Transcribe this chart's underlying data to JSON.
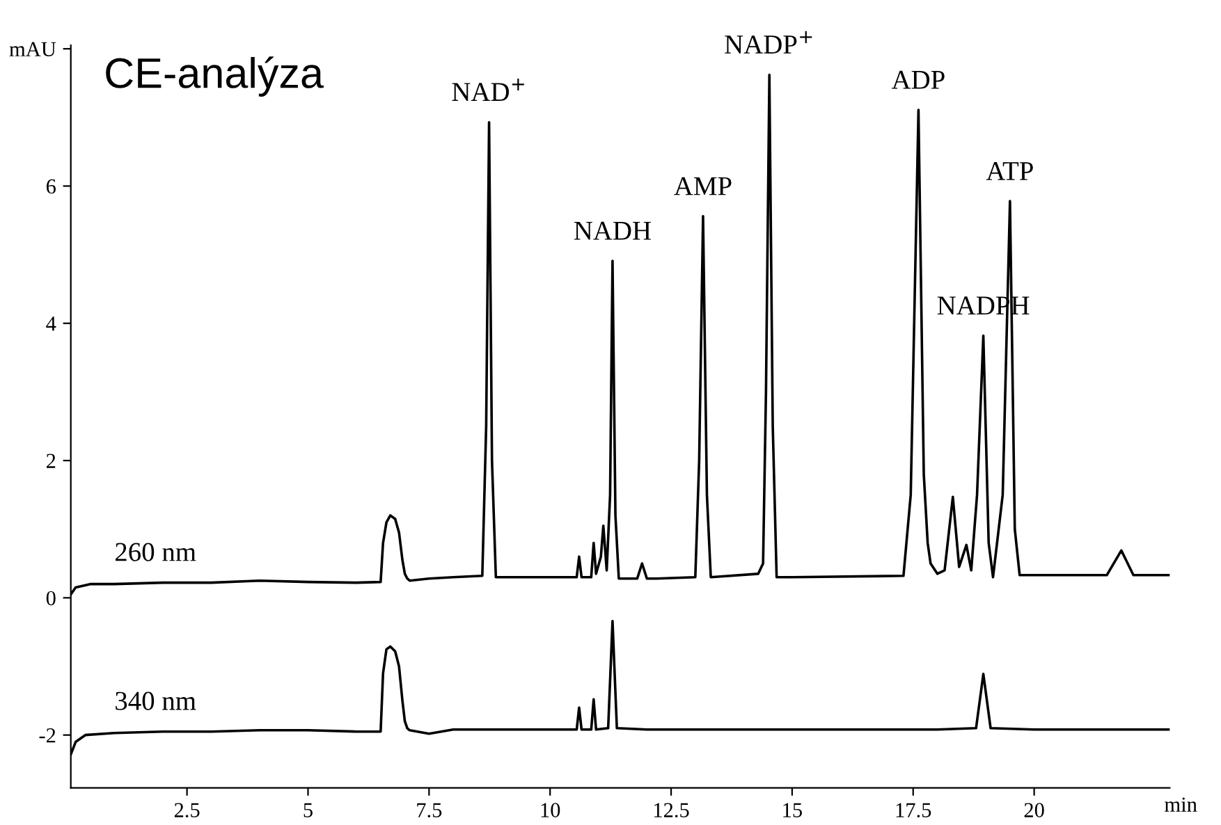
{
  "chart_data": {
    "type": "line",
    "title": "CE-analýza",
    "xlabel": "min",
    "xlim": [
      0.1,
      22.8
    ],
    "ylim": [
      -2.77,
      8.05
    ],
    "xticks": [
      2.5,
      5,
      7.5,
      10,
      12.5,
      15,
      17.5,
      20
    ],
    "yticks": [
      -2,
      0,
      2,
      4,
      6,
      {
        "value": 8,
        "label": "mAU"
      }
    ],
    "grid": false,
    "marker": "none",
    "line_style": "solid",
    "series": [
      {
        "name": "260 nm",
        "color": "#000000",
        "x": [
          0.1,
          0.2,
          0.5,
          1,
          2,
          3,
          4,
          5,
          6,
          6.5,
          6.55,
          6.62,
          6.7,
          6.8,
          6.88,
          6.95,
          7.0,
          7.05,
          7.1,
          7.5,
          8,
          8.6,
          8.68,
          8.74,
          8.8,
          8.88,
          9.5,
          10,
          10.55,
          10.6,
          10.65,
          10.85,
          10.9,
          10.95,
          11.05,
          11.1,
          11.17,
          11.24,
          11.29,
          11.35,
          11.42,
          11.8,
          11.9,
          12,
          12.2,
          13.0,
          13.08,
          13.16,
          13.24,
          13.32,
          14.3,
          14.4,
          14.46,
          14.53,
          14.6,
          14.68,
          15,
          17.3,
          17.45,
          17.61,
          17.72,
          17.8,
          17.86,
          18.0,
          18.15,
          18.32,
          18.45,
          18.6,
          18.7,
          18.82,
          18.95,
          19.06,
          19.15,
          19.35,
          19.5,
          19.6,
          19.7,
          21.5,
          21.8,
          22.05,
          22.8
        ],
        "values": [
          0.05,
          0.15,
          0.2,
          0.2,
          0.22,
          0.22,
          0.25,
          0.23,
          0.22,
          0.23,
          0.8,
          1.1,
          1.2,
          1.15,
          0.95,
          0.55,
          0.35,
          0.28,
          0.25,
          0.28,
          0.3,
          0.32,
          2.5,
          6.93,
          2.0,
          0.3,
          0.3,
          0.3,
          0.3,
          0.6,
          0.3,
          0.3,
          0.8,
          0.35,
          0.6,
          1.05,
          0.4,
          1.5,
          4.91,
          1.2,
          0.28,
          0.28,
          0.5,
          0.28,
          0.28,
          0.3,
          2.0,
          5.56,
          1.5,
          0.3,
          0.35,
          0.5,
          3.0,
          7.62,
          2.5,
          0.3,
          0.3,
          0.32,
          1.5,
          7.11,
          1.8,
          0.8,
          0.5,
          0.35,
          0.4,
          1.47,
          0.45,
          0.77,
          0.4,
          1.5,
          3.82,
          0.8,
          0.3,
          1.5,
          5.78,
          1.0,
          0.33,
          0.33,
          0.69,
          0.33,
          0.33
        ]
      },
      {
        "name": "340 nm",
        "color": "#000000",
        "x": [
          0.1,
          0.2,
          0.4,
          1,
          2,
          3,
          4,
          5,
          6,
          6.5,
          6.55,
          6.62,
          6.7,
          6.8,
          6.88,
          6.95,
          7.0,
          7.05,
          7.1,
          7.5,
          8,
          10,
          10.55,
          10.6,
          10.65,
          10.85,
          10.9,
          10.95,
          11.2,
          11.29,
          11.38,
          12,
          15,
          18,
          18.8,
          18.95,
          19.1,
          20,
          22.8
        ],
        "values": [
          -2.28,
          -2.1,
          -2.0,
          -1.97,
          -1.95,
          -1.95,
          -1.93,
          -1.93,
          -1.95,
          -1.95,
          -1.1,
          -0.75,
          -0.71,
          -0.78,
          -1.0,
          -1.5,
          -1.8,
          -1.9,
          -1.93,
          -1.98,
          -1.92,
          -1.92,
          -1.92,
          -1.6,
          -1.92,
          -1.92,
          -1.48,
          -1.92,
          -1.9,
          -0.34,
          -1.9,
          -1.92,
          -1.92,
          -1.92,
          -1.9,
          -1.11,
          -1.9,
          -1.92,
          -1.92
        ]
      }
    ],
    "annotations": [
      {
        "text": "NAD$^{+}$",
        "x": 8.74,
        "y": 6.93
      },
      {
        "text": "NADH",
        "x": 11.29,
        "y": 4.91
      },
      {
        "text": "AMP",
        "x": 13.16,
        "y": 5.56
      },
      {
        "text": "NADP$^{+}$",
        "x": 14.53,
        "y": 7.62
      },
      {
        "text": "ADP",
        "x": 17.61,
        "y": 7.11
      },
      {
        "text": "NADPH",
        "x": 18.95,
        "y": 3.82
      },
      {
        "text": "ATP",
        "x": 19.5,
        "y": 5.78
      }
    ]
  }
}
